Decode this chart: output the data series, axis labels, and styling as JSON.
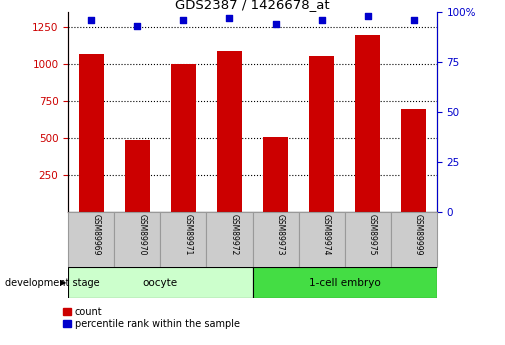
{
  "title": "GDS2387 / 1426678_at",
  "samples": [
    "GSM89969",
    "GSM89970",
    "GSM89971",
    "GSM89972",
    "GSM89973",
    "GSM89974",
    "GSM89975",
    "GSM89999"
  ],
  "counts": [
    1065,
    490,
    1000,
    1090,
    510,
    1055,
    1195,
    695
  ],
  "percentiles": [
    96,
    93,
    96,
    97,
    94,
    96,
    98,
    96
  ],
  "ylim_left": [
    0,
    1350
  ],
  "ylim_right": [
    0,
    100
  ],
  "yticks_left": [
    250,
    500,
    750,
    1000,
    1250
  ],
  "yticks_right": [
    0,
    25,
    50,
    75,
    100
  ],
  "bar_color": "#cc0000",
  "dot_color": "#0000cc",
  "grid_color": "#000000",
  "oocyte_color": "#ccffcc",
  "embryo_color": "#44dd44",
  "sample_bg_color": "#cccccc",
  "sample_border_color": "#999999",
  "group_labels": [
    "oocyte",
    "1-cell embryo"
  ],
  "legend_count_label": "count",
  "legend_pct_label": "percentile rank within the sample",
  "dev_stage_label": "development stage",
  "bar_width": 0.55
}
